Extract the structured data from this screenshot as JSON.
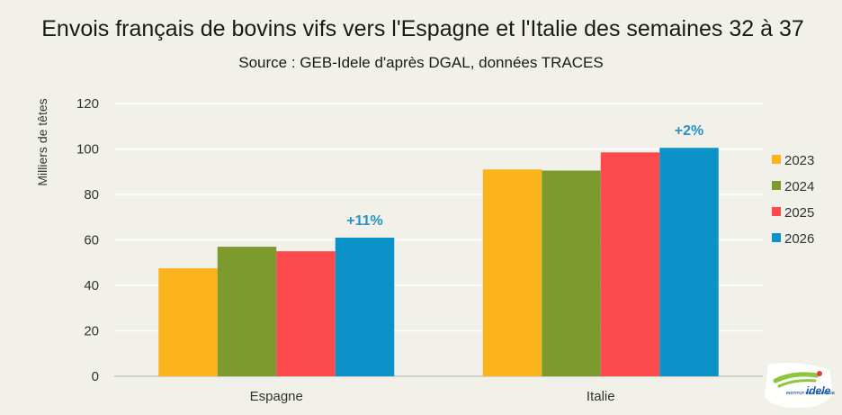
{
  "chart_data": {
    "type": "bar",
    "title": "Envois français de bovins vifs vers l'Espagne et l'Italie des semaines 32 à 37",
    "subtitle": "Source : GEB-Idele d'après DGAL, données TRACES",
    "ylabel": "Milliers de têtes",
    "xlabel": "",
    "ylim": [
      0,
      120
    ],
    "yticks": [
      0,
      20,
      40,
      60,
      80,
      100,
      120
    ],
    "grid": true,
    "legend": "right",
    "categories": [
      "Espagne",
      "Italie"
    ],
    "series": [
      {
        "name": "2023",
        "color": "#fbb41c",
        "values": [
          47.5,
          91
        ]
      },
      {
        "name": "2024",
        "color": "#7c9a2e",
        "values": [
          57,
          90.5
        ]
      },
      {
        "name": "2025",
        "color": "#fd4a4c",
        "values": [
          55,
          98.5
        ]
      },
      {
        "name": "2026",
        "color": "#0b92c8",
        "values": [
          61,
          100.5
        ]
      }
    ],
    "annotations": [
      {
        "category": "Espagne",
        "series": "2026",
        "text": "+11%",
        "color": "#2a90c6"
      },
      {
        "category": "Italie",
        "series": "2026",
        "text": "+2%",
        "color": "#2a90c6"
      }
    ]
  },
  "logo": {
    "text_small": "INSTITUT DE L'ÉLEVAGE",
    "text_brand": "idele",
    "colors": {
      "green": "#8cc63f",
      "blue": "#1e5aa8",
      "red": "#e53935"
    }
  }
}
